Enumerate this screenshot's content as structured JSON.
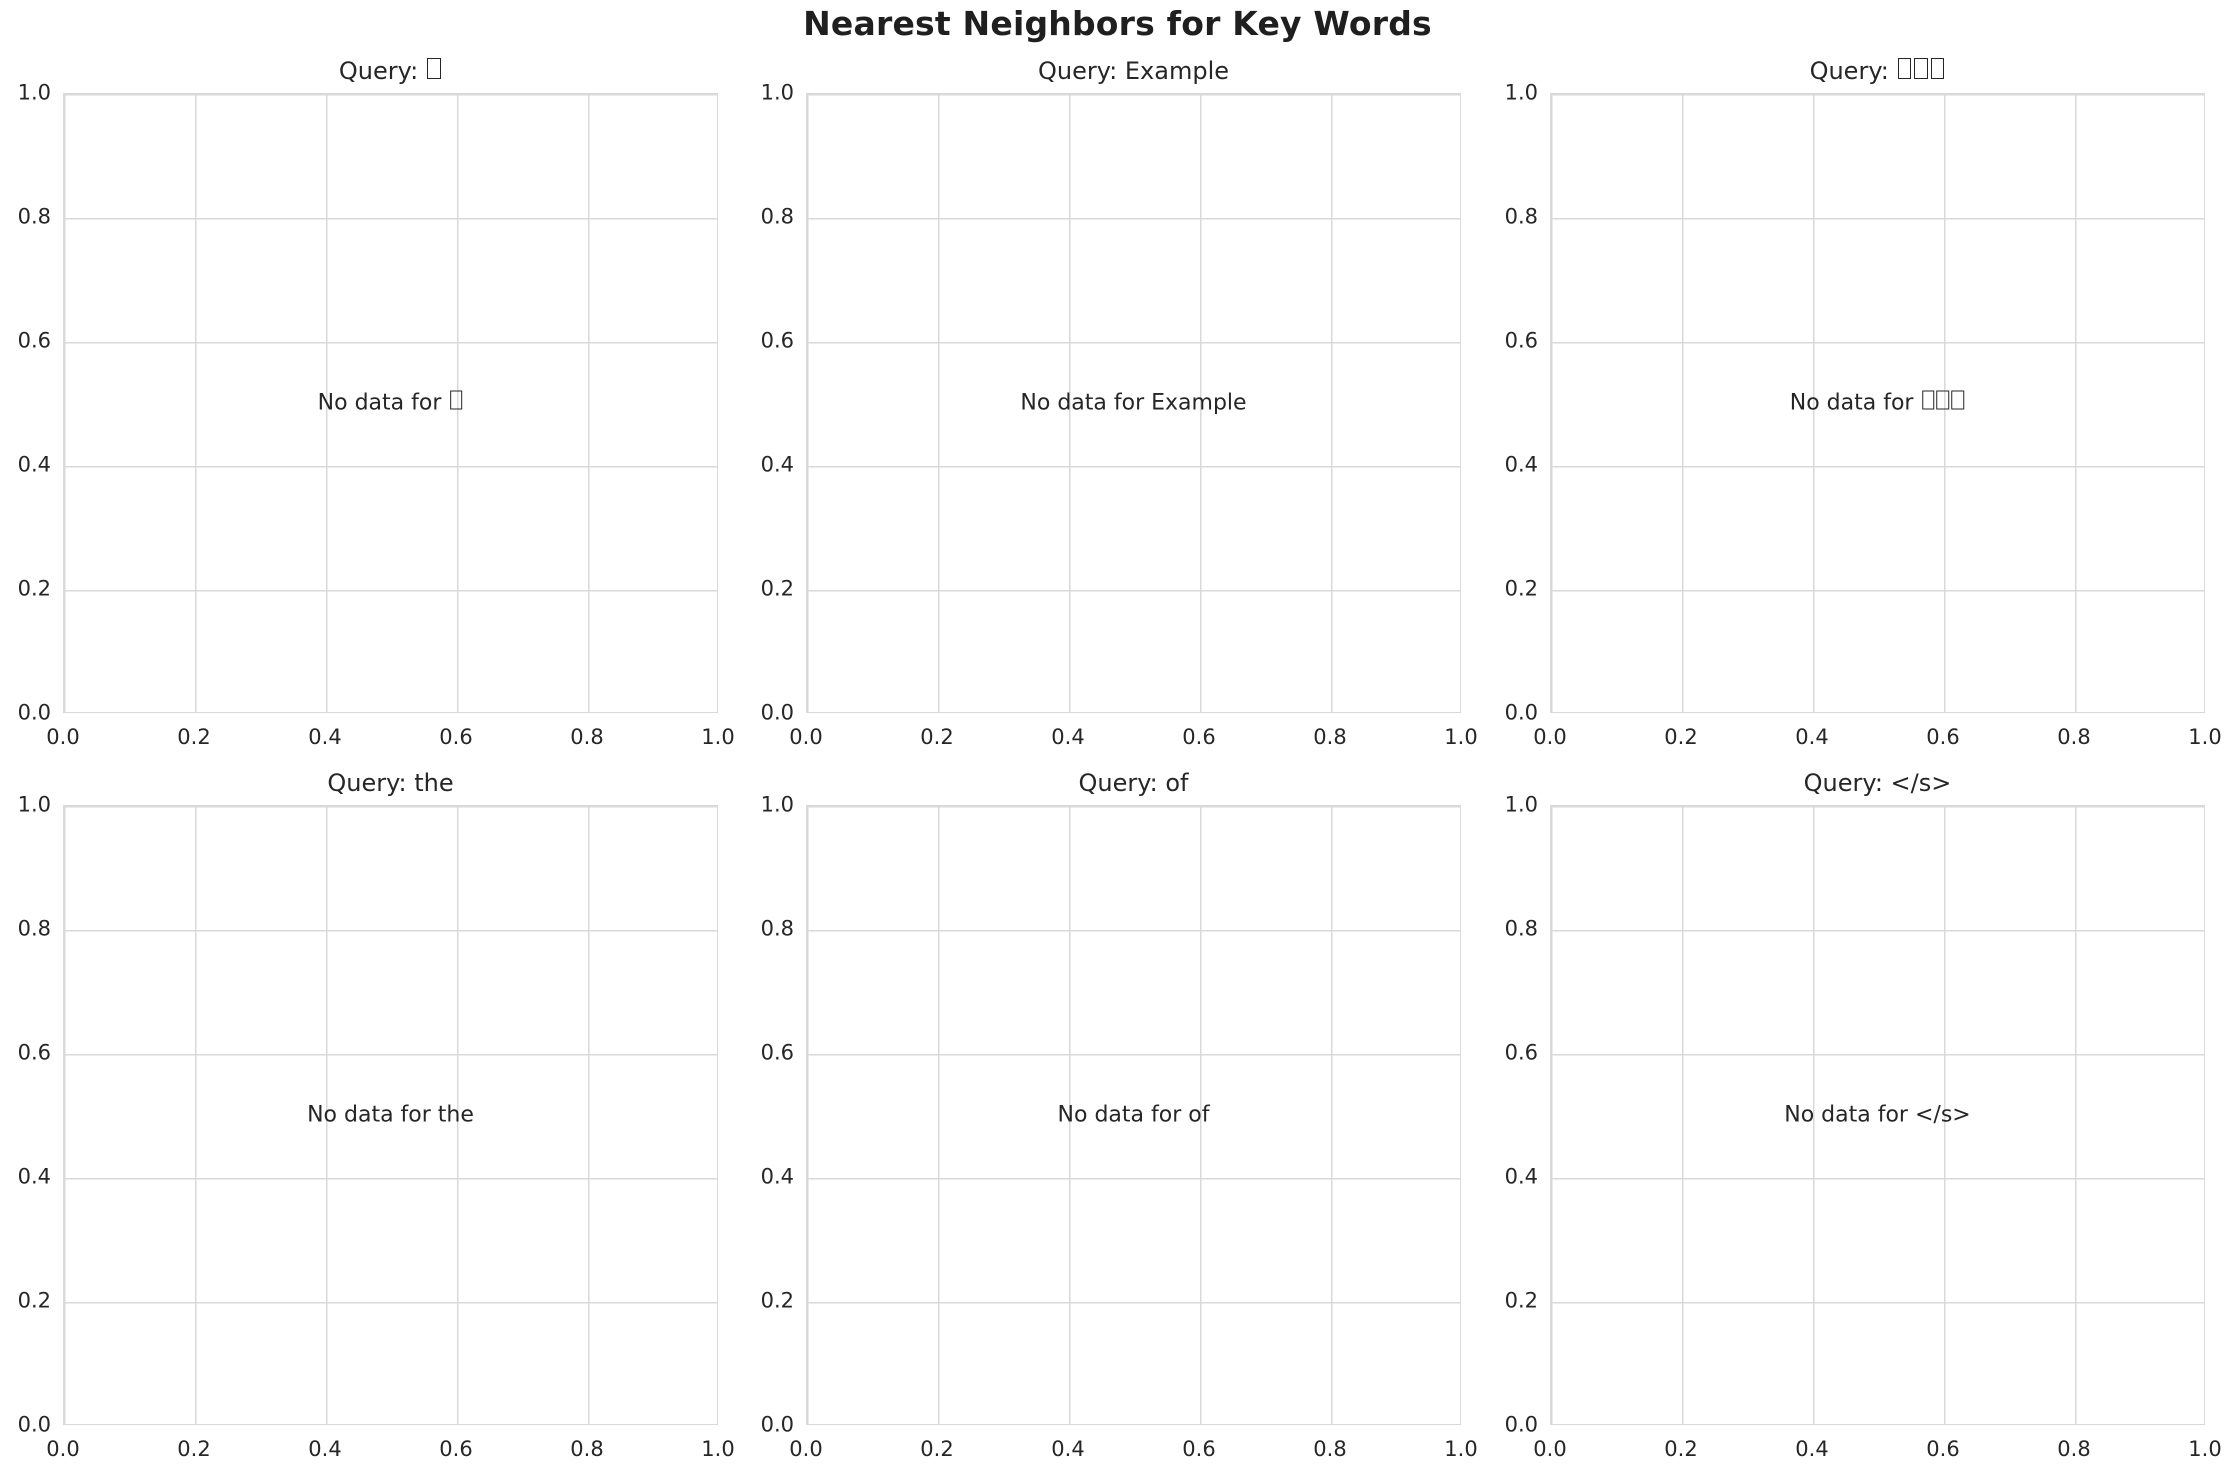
{
  "figure": {
    "title": "Nearest Neighbors for Key Words"
  },
  "colors": {
    "background": "#ffffff",
    "grid": "#d9d9d9",
    "axes_edge": "#d9d9d9",
    "text": "#262626",
    "title_text": "#1f1f1f"
  },
  "axes_ticks": {
    "x": [
      "0.0",
      "0.2",
      "0.4",
      "0.6",
      "0.8",
      "1.0"
    ],
    "y": [
      "1.0",
      "0.8",
      "0.6",
      "0.4",
      "0.2",
      "0.0"
    ]
  },
  "subplots": [
    {
      "query": "□",
      "title": "Query: □",
      "no_data_label": "No data for □"
    },
    {
      "query": "Example",
      "title": "Query: Example",
      "no_data_label": "No data for Example"
    },
    {
      "query": "□□□",
      "title": "Query: □□□",
      "no_data_label": "No data for □□□"
    },
    {
      "query": "the",
      "title": "Query: the",
      "no_data_label": "No data for the"
    },
    {
      "query": "of",
      "title": "Query: of",
      "no_data_label": "No data for of"
    },
    {
      "query": "</s>",
      "title": "Query: </s>",
      "no_data_label": "No data for </s>"
    }
  ],
  "chart_data": {
    "type": "scatter",
    "title": "Nearest Neighbors for Key Words",
    "layout": "2 rows x 3 columns of subplots, all empty (no data points plotted)",
    "grid": true,
    "subplots": [
      {
        "title": "Query: □",
        "x": [],
        "y": [],
        "annotation": {
          "text": "No data for □",
          "x": 0.5,
          "y": 0.5
        },
        "xlim": [
          0.0,
          1.0
        ],
        "ylim": [
          0.0,
          1.0
        ],
        "xticks": [
          0.0,
          0.2,
          0.4,
          0.6,
          0.8,
          1.0
        ],
        "yticks": [
          0.0,
          0.2,
          0.4,
          0.6,
          0.8,
          1.0
        ]
      },
      {
        "title": "Query: Example",
        "x": [],
        "y": [],
        "annotation": {
          "text": "No data for Example",
          "x": 0.5,
          "y": 0.5
        },
        "xlim": [
          0.0,
          1.0
        ],
        "ylim": [
          0.0,
          1.0
        ],
        "xticks": [
          0.0,
          0.2,
          0.4,
          0.6,
          0.8,
          1.0
        ],
        "yticks": [
          0.0,
          0.2,
          0.4,
          0.6,
          0.8,
          1.0
        ]
      },
      {
        "title": "Query: □□□",
        "x": [],
        "y": [],
        "annotation": {
          "text": "No data for □□□",
          "x": 0.5,
          "y": 0.5
        },
        "xlim": [
          0.0,
          1.0
        ],
        "ylim": [
          0.0,
          1.0
        ],
        "xticks": [
          0.0,
          0.2,
          0.4,
          0.6,
          0.8,
          1.0
        ],
        "yticks": [
          0.0,
          0.2,
          0.4,
          0.6,
          0.8,
          1.0
        ]
      },
      {
        "title": "Query: the",
        "x": [],
        "y": [],
        "annotation": {
          "text": "No data for the",
          "x": 0.5,
          "y": 0.5
        },
        "xlim": [
          0.0,
          1.0
        ],
        "ylim": [
          0.0,
          1.0
        ],
        "xticks": [
          0.0,
          0.2,
          0.4,
          0.6,
          0.8,
          1.0
        ],
        "yticks": [
          0.0,
          0.2,
          0.4,
          0.6,
          0.8,
          1.0
        ]
      },
      {
        "title": "Query: of",
        "x": [],
        "y": [],
        "annotation": {
          "text": "No data for of",
          "x": 0.5,
          "y": 0.5
        },
        "xlim": [
          0.0,
          1.0
        ],
        "ylim": [
          0.0,
          1.0
        ],
        "xticks": [
          0.0,
          0.2,
          0.4,
          0.6,
          0.8,
          1.0
        ],
        "yticks": [
          0.0,
          0.2,
          0.4,
          0.6,
          0.8,
          1.0
        ]
      },
      {
        "title": "Query: </s>",
        "x": [],
        "y": [],
        "annotation": {
          "text": "No data for </s>",
          "x": 0.5,
          "y": 0.5
        },
        "xlim": [
          0.0,
          1.0
        ],
        "ylim": [
          0.0,
          1.0
        ],
        "xticks": [
          0.0,
          0.2,
          0.4,
          0.6,
          0.8,
          1.0
        ],
        "yticks": [
          0.0,
          0.2,
          0.4,
          0.6,
          0.8,
          1.0
        ]
      }
    ]
  }
}
